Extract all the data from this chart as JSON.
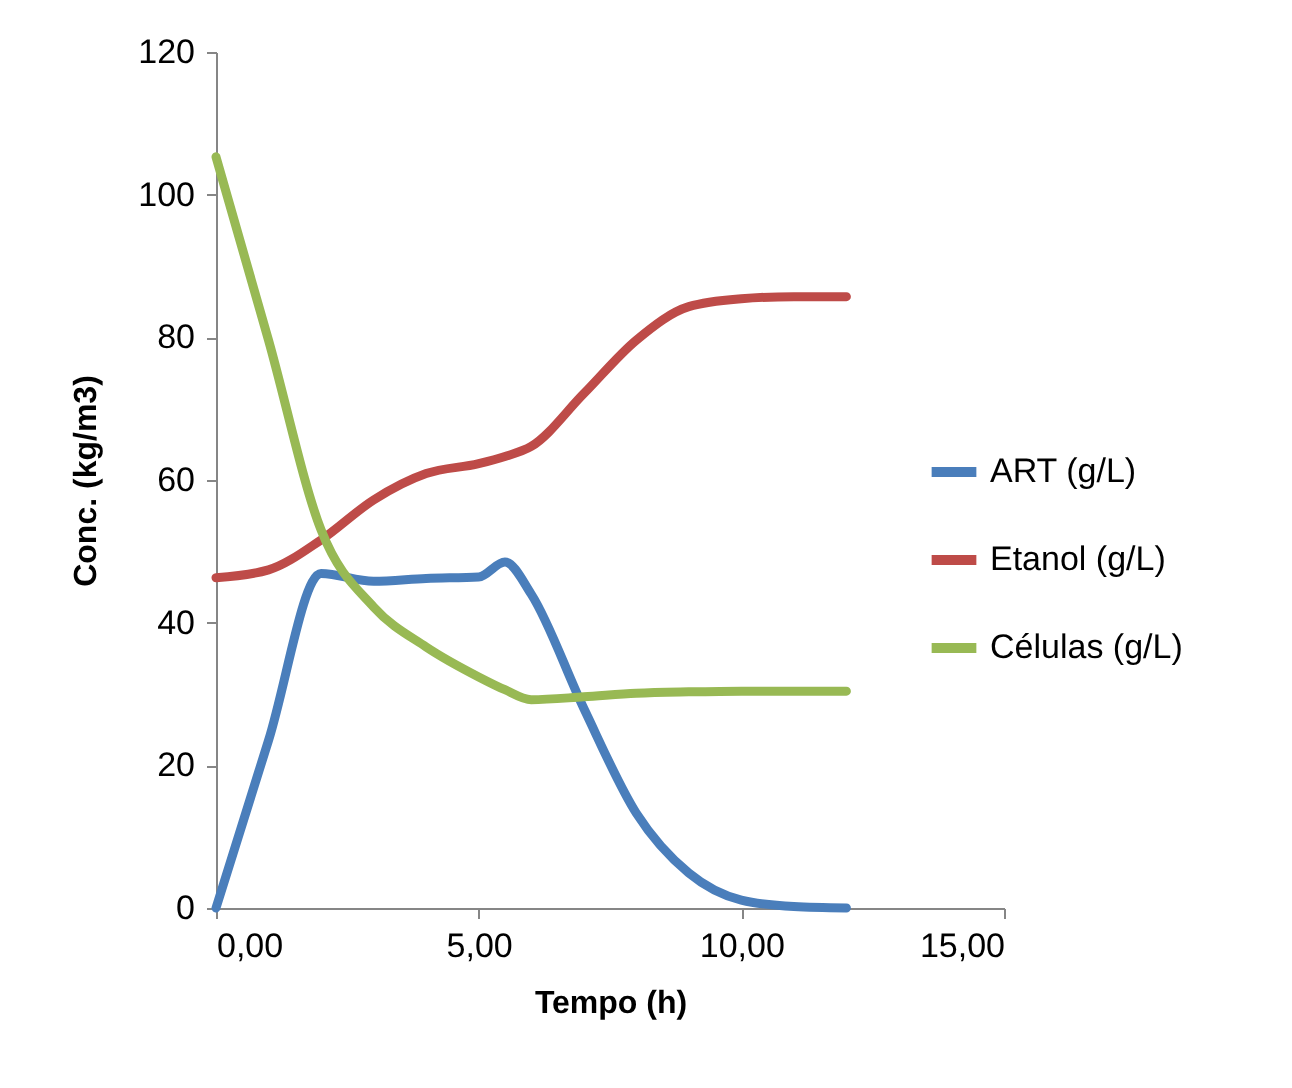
{
  "chart_data": {
    "type": "line",
    "xlabel": "Tempo (h)",
    "ylabel": "Conc. (kg/m3)",
    "x": [
      0,
      1,
      2,
      3,
      4,
      5,
      5.5,
      6,
      7,
      8,
      9,
      10,
      11,
      12
    ],
    "series": [
      {
        "name": "ART (g/L)",
        "color": "#4a7ebb",
        "values": [
          0,
          23.5,
          46.9,
          45.8,
          46.2,
          46.4,
          48.5,
          44,
          28,
          13.3,
          4.9,
          1.1,
          0.2,
          0
        ]
      },
      {
        "name": "Etanol (g/L)",
        "color": "#be4b48",
        "values": [
          46.3,
          47.4,
          51.6,
          57.2,
          60.9,
          62.3,
          63.3,
          64.7,
          72.1,
          79.6,
          84.3,
          85.4,
          85.7,
          85.7
        ]
      },
      {
        "name": "Células (g/L)",
        "color": "#98b954",
        "values": [
          105.3,
          79.6,
          53,
          42.2,
          36.6,
          32.4,
          30.6,
          29.2,
          29.6,
          30.1,
          30.3,
          30.4,
          30.4,
          30.4
        ]
      }
    ],
    "xlim": [
      0,
      15
    ],
    "xticks": [
      {
        "value": 0,
        "label": "0,00"
      },
      {
        "value": 5,
        "label": "5,00"
      },
      {
        "value": 10,
        "label": "10,00"
      },
      {
        "value": 15,
        "label": "15,00"
      }
    ],
    "ylim": [
      0,
      120
    ],
    "yticks": [
      0,
      20,
      40,
      60,
      80,
      100,
      120
    ],
    "grid": false,
    "legend": "right",
    "marker": "none",
    "line_style": "solid"
  }
}
